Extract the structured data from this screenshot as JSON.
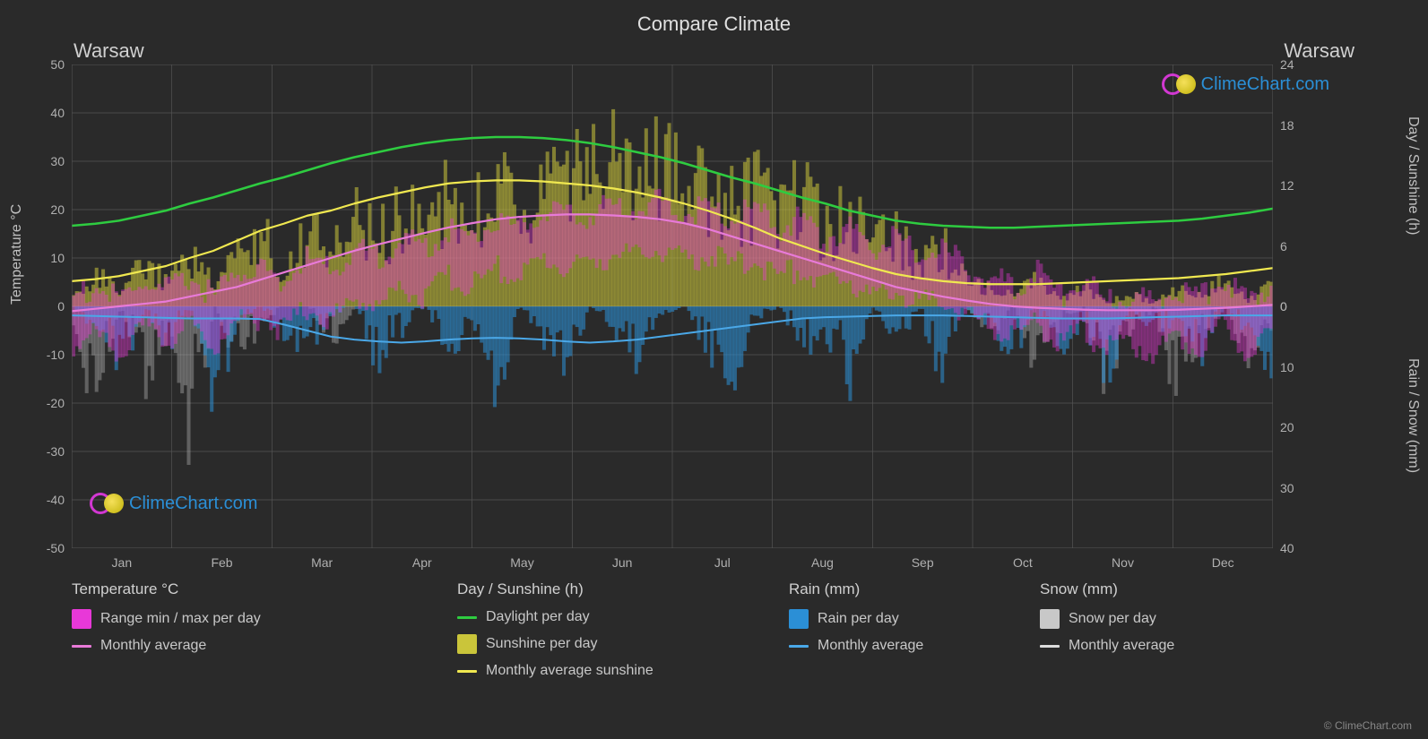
{
  "title": "Compare Climate",
  "city_left": "Warsaw",
  "city_right": "Warsaw",
  "watermark_text": "ClimeChart.com",
  "copyright": "© ClimeChart.com",
  "axes": {
    "y_left_label": "Temperature °C",
    "y_right_label_top": "Day / Sunshine (h)",
    "y_right_label_bottom": "Rain / Snow (mm)",
    "y_left_ticks": [
      50,
      40,
      30,
      20,
      10,
      0,
      -10,
      -20,
      -30,
      -40,
      -50
    ],
    "y_left_min": -50,
    "y_left_max": 50,
    "y_right_top_ticks": [
      24,
      18,
      12,
      6,
      0
    ],
    "y_right_top_min": 0,
    "y_right_top_max": 24,
    "y_right_bottom_ticks": [
      0,
      10,
      20,
      30,
      40
    ],
    "y_right_bottom_min": 0,
    "y_right_bottom_max": 40,
    "months": [
      "Jan",
      "Feb",
      "Mar",
      "Apr",
      "May",
      "Jun",
      "Jul",
      "Aug",
      "Sep",
      "Oct",
      "Nov",
      "Dec"
    ]
  },
  "colors": {
    "background": "#2a2a2a",
    "grid": "#555555",
    "grid_minor": "#444444",
    "text": "#d0d0d0",
    "temp_range": "#e838d8",
    "temp_avg_line": "#e87ad8",
    "daylight_line": "#2ecc40",
    "sunshine_bar": "#cac53a",
    "sunshine_avg_line": "#f0e850",
    "rain_bar": "#2b8fd6",
    "rain_avg_line": "#4aa8e8",
    "snow_bar": "#c8c8c8",
    "snow_avg_line": "#dddddd"
  },
  "legend": {
    "col1": {
      "header": "Temperature °C",
      "items": [
        {
          "kind": "box",
          "color": "#e838d8",
          "label": "Range min / max per day"
        },
        {
          "kind": "line",
          "color": "#e87ad8",
          "label": "Monthly average"
        }
      ]
    },
    "col2": {
      "header": "Day / Sunshine (h)",
      "items": [
        {
          "kind": "line",
          "color": "#2ecc40",
          "label": "Daylight per day"
        },
        {
          "kind": "box",
          "color": "#cac53a",
          "label": "Sunshine per day"
        },
        {
          "kind": "line",
          "color": "#f0e850",
          "label": "Monthly average sunshine"
        }
      ]
    },
    "col3": {
      "header": "Rain (mm)",
      "items": [
        {
          "kind": "box",
          "color": "#2b8fd6",
          "label": "Rain per day"
        },
        {
          "kind": "line",
          "color": "#4aa8e8",
          "label": "Monthly average"
        }
      ]
    },
    "col4": {
      "header": "Snow (mm)",
      "items": [
        {
          "kind": "box",
          "color": "#c8c8c8",
          "label": "Snow per day"
        },
        {
          "kind": "line",
          "color": "#dddddd",
          "label": "Monthly average"
        }
      ]
    }
  },
  "series": {
    "daylight_h": [
      8.0,
      8.2,
      8.5,
      9.0,
      9.5,
      10.2,
      10.8,
      11.5,
      12.2,
      12.8,
      13.5,
      14.2,
      14.8,
      15.3,
      15.8,
      16.2,
      16.5,
      16.7,
      16.8,
      16.8,
      16.7,
      16.5,
      16.2,
      15.8,
      15.3,
      14.8,
      14.2,
      13.5,
      12.8,
      12.2,
      11.5,
      10.8,
      10.2,
      9.5,
      9.0,
      8.5,
      8.2,
      8.0,
      7.9,
      7.8,
      7.8,
      7.9,
      8.0,
      8.1,
      8.2,
      8.3,
      8.4,
      8.5,
      8.7,
      9.0,
      9.3,
      9.7
    ],
    "sunshine_avg_h": [
      2.5,
      2.7,
      3.0,
      3.5,
      4.0,
      4.8,
      5.5,
      6.5,
      7.5,
      8.2,
      9.0,
      9.5,
      10.2,
      10.8,
      11.3,
      11.8,
      12.2,
      12.4,
      12.5,
      12.5,
      12.4,
      12.2,
      12.0,
      11.7,
      11.3,
      10.8,
      10.2,
      9.5,
      8.7,
      7.8,
      6.8,
      6.0,
      5.2,
      4.5,
      3.8,
      3.2,
      2.8,
      2.5,
      2.3,
      2.2,
      2.2,
      2.2,
      2.3,
      2.4,
      2.5,
      2.6,
      2.7,
      2.8,
      3.0,
      3.2,
      3.5,
      3.8
    ],
    "temp_avg_c": [
      -1.0,
      -0.5,
      0.0,
      0.5,
      1.0,
      2.0,
      3.0,
      4.0,
      5.5,
      7.0,
      8.5,
      10.0,
      11.5,
      12.8,
      14.0,
      15.2,
      16.3,
      17.2,
      18.0,
      18.5,
      18.8,
      19.0,
      19.0,
      18.8,
      18.5,
      18.0,
      17.2,
      16.0,
      14.5,
      13.0,
      11.5,
      10.0,
      8.5,
      7.0,
      5.5,
      4.0,
      3.0,
      2.0,
      1.2,
      0.5,
      0.0,
      -0.3,
      -0.5,
      -0.7,
      -0.8,
      -0.8,
      -0.8,
      -0.7,
      -0.5,
      -0.3,
      0.0,
      0.3
    ],
    "rain_avg_mm": [
      1.5,
      1.6,
      1.7,
      1.8,
      1.9,
      2.0,
      2.0,
      2.0,
      2.1,
      3.0,
      4.0,
      5.0,
      5.5,
      5.8,
      6.0,
      5.8,
      5.5,
      5.3,
      5.2,
      5.3,
      5.5,
      5.8,
      6.0,
      5.8,
      5.5,
      5.0,
      4.5,
      4.0,
      3.5,
      3.0,
      2.5,
      2.0,
      1.8,
      1.7,
      1.6,
      1.5,
      1.5,
      1.5,
      1.6,
      1.7,
      1.8,
      1.9,
      2.0,
      2.0,
      2.0,
      1.9,
      1.8,
      1.7,
      1.6,
      1.5,
      1.5,
      1.5
    ],
    "temp_min_c": [
      -8,
      -6,
      -9,
      -5,
      -7,
      -4,
      -8,
      -3,
      -2,
      -5,
      0,
      -3,
      2,
      0,
      4,
      2,
      6,
      4,
      8,
      6,
      10,
      8,
      9,
      11,
      10,
      12,
      9,
      11,
      8,
      10,
      6,
      8,
      4,
      6,
      2,
      4,
      0,
      2,
      -2,
      -4,
      -6,
      -3,
      -8,
      -5,
      -9,
      -7,
      -10,
      -6,
      -8,
      -4,
      -9,
      -5
    ],
    "temp_max_c": [
      2,
      4,
      1,
      5,
      3,
      6,
      2,
      7,
      8,
      5,
      10,
      7,
      12,
      10,
      14,
      12,
      16,
      14,
      18,
      16,
      20,
      18,
      19,
      21,
      20,
      22,
      19,
      21,
      18,
      20,
      16,
      18,
      14,
      16,
      12,
      14,
      10,
      12,
      8,
      6,
      4,
      7,
      2,
      5,
      1,
      3,
      0,
      4,
      2,
      6,
      1,
      5
    ],
    "sunshine_daily_h": [
      1.5,
      3,
      2,
      4,
      2.5,
      5,
      3,
      6,
      7,
      4,
      8,
      5,
      9,
      7,
      10,
      8,
      11,
      9,
      12,
      10,
      13,
      11,
      15,
      14,
      13,
      15,
      11,
      13,
      10,
      12,
      9,
      11,
      8,
      10,
      6,
      8,
      4,
      6,
      3,
      2,
      1,
      3,
      0.5,
      2,
      0.3,
      1.5,
      0.2,
      2,
      1,
      3,
      0.5,
      2.5
    ],
    "rain_daily_mm": [
      0,
      3,
      8,
      1,
      5,
      0,
      12,
      2,
      0,
      4,
      7,
      1,
      0,
      9,
      3,
      0,
      6,
      2,
      11,
      0,
      4,
      8,
      0,
      3,
      7,
      1,
      0,
      5,
      9,
      2,
      0,
      6,
      3,
      10,
      0,
      4,
      1,
      8,
      0,
      3,
      7,
      0,
      5,
      2,
      9,
      0,
      4,
      1,
      6,
      0,
      3,
      8
    ],
    "snow_daily_mm": [
      5,
      12,
      0,
      8,
      3,
      15,
      0,
      6,
      2,
      0,
      0,
      4,
      0,
      0,
      0,
      0,
      0,
      0,
      0,
      0,
      0,
      0,
      0,
      0,
      0,
      0,
      0,
      0,
      0,
      0,
      0,
      0,
      0,
      0,
      0,
      0,
      0,
      0,
      0,
      3,
      0,
      7,
      2,
      0,
      9,
      4,
      0,
      11,
      3,
      0,
      6,
      2
    ]
  },
  "daily_bar_count": 365
}
